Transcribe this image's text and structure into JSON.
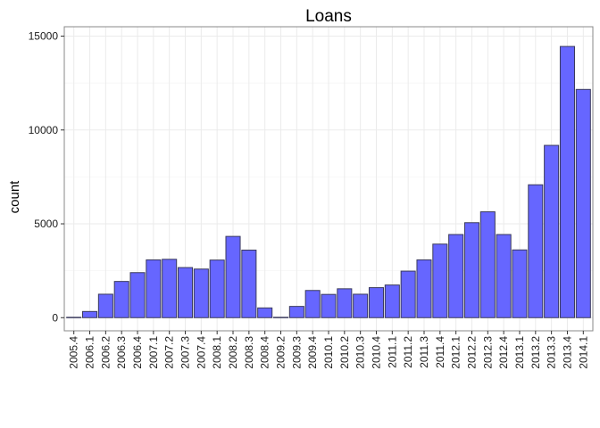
{
  "chart_data": {
    "type": "bar",
    "title": "Loans",
    "xlabel": "",
    "ylabel": "count",
    "ylim": [
      -700,
      15500
    ],
    "yticks": [
      0,
      5000,
      10000,
      15000
    ],
    "grid": true,
    "categories": [
      "2005.4",
      "2006.1",
      "2006.2",
      "2006.3",
      "2006.4",
      "2007.1",
      "2007.2",
      "2007.3",
      "2007.4",
      "2008.1",
      "2008.2",
      "2008.3",
      "2008.4",
      "2009.2",
      "2009.3",
      "2009.4",
      "2010.1",
      "2010.2",
      "2010.3",
      "2010.4",
      "2011.1",
      "2011.2",
      "2011.3",
      "2011.4",
      "2012.1",
      "2012.2",
      "2012.3",
      "2012.4",
      "2013.1",
      "2013.2",
      "2013.3",
      "2013.4",
      "2014.1"
    ],
    "values": [
      20,
      330,
      1250,
      1930,
      2400,
      3080,
      3110,
      2670,
      2590,
      3070,
      4330,
      3600,
      520,
      20,
      600,
      1450,
      1240,
      1540,
      1250,
      1600,
      1740,
      2480,
      3080,
      3920,
      4430,
      5060,
      5640,
      4430,
      3610,
      7080,
      9180,
      14450,
      12160
    ]
  },
  "colors": {
    "bar_fill": "#6666ff",
    "bar_stroke": "#3a3a5c",
    "panel_border": "#888888",
    "grid_major": "#ebebeb",
    "grid_minor": "#f5f5f5"
  }
}
